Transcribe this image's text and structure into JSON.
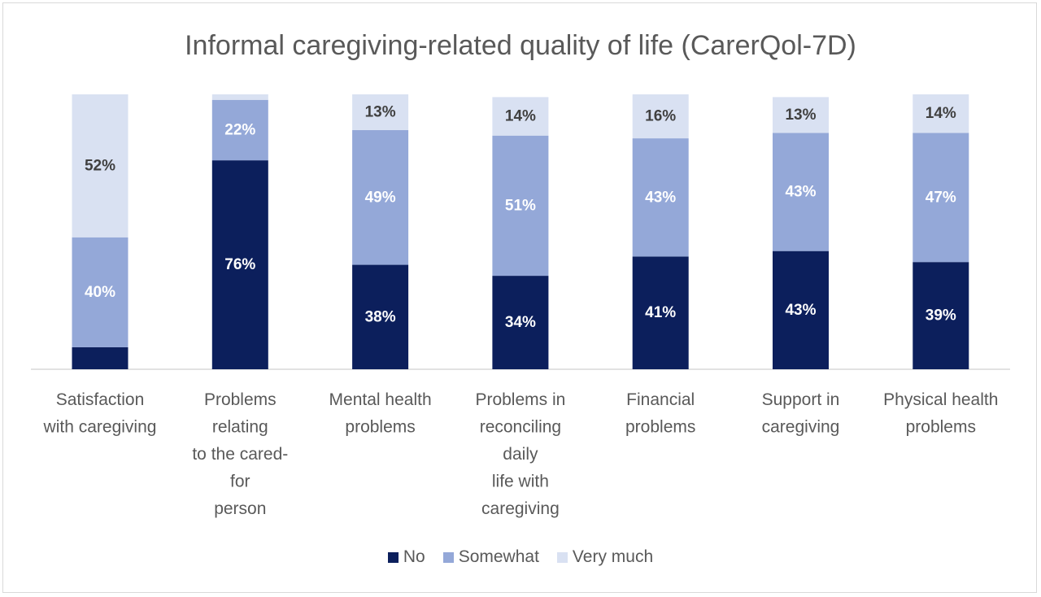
{
  "chart_data": {
    "type": "bar",
    "stacked": true,
    "orientation": "vertical",
    "title": "Informal caregiving-related quality of life (CarerQol-7D)",
    "xlabel": "",
    "ylabel": "",
    "ylim": [
      0,
      100
    ],
    "grid": false,
    "legend_position": "bottom",
    "categories": [
      [
        "Satisfaction",
        "with caregiving"
      ],
      [
        "Problems",
        "relating",
        "to the cared-",
        "for",
        "person"
      ],
      [
        "Mental health",
        "problems"
      ],
      [
        "Problems in",
        "reconciling",
        "daily",
        "life with",
        "caregiving"
      ],
      [
        "Financial",
        "problems"
      ],
      [
        "Support in",
        "caregiving"
      ],
      [
        "Physical health",
        "problems"
      ]
    ],
    "series": [
      {
        "name": "No",
        "color": "#0c1f5c",
        "label_color": "#ffffff",
        "values": [
          8,
          76,
          38,
          34,
          41,
          43,
          39
        ],
        "labels": [
          "",
          "76%",
          "38%",
          "34%",
          "41%",
          "43%",
          "39%"
        ]
      },
      {
        "name": "Somewhat",
        "color": "#94a8d8",
        "label_color": "#ffffff",
        "values": [
          40,
          22,
          49,
          51,
          43,
          43,
          47
        ],
        "labels": [
          "40%",
          "22%",
          "49%",
          "51%",
          "43%",
          "43%",
          "47%"
        ]
      },
      {
        "name": "Very much",
        "color": "#d9e1f2",
        "label_color": "#404040",
        "values": [
          52,
          2,
          13,
          14,
          16,
          13,
          14
        ],
        "labels": [
          "52%",
          "",
          "13%",
          "14%",
          "16%",
          "13%",
          "14%"
        ]
      }
    ]
  }
}
